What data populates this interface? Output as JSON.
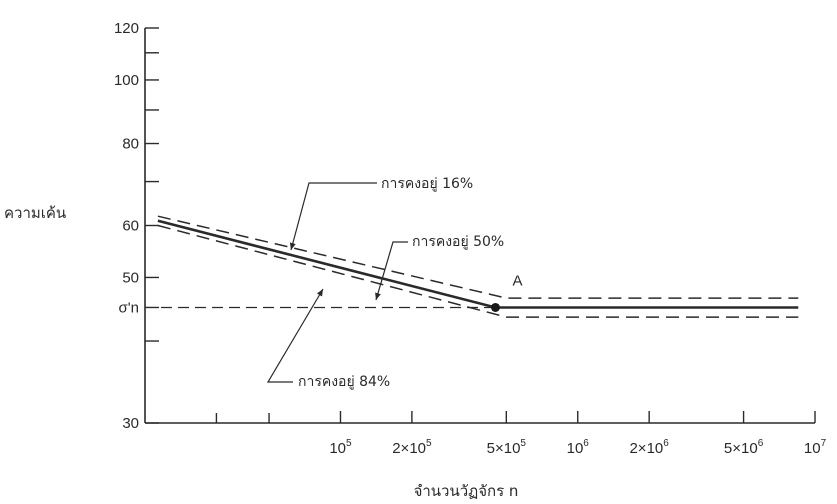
{
  "chart_data": {
    "type": "line",
    "title": "",
    "xlabel": "จำนวนวัฏจักร n",
    "ylabel": "ความเค้น",
    "x_scale": "log",
    "y_scale": "log",
    "xlim": [
      15000,
      10000000
    ],
    "ylim": [
      30,
      120
    ],
    "grid": false,
    "legend": "none",
    "y_ticks": [
      {
        "value": 120,
        "label": "120"
      },
      {
        "value": 100,
        "label": "100"
      },
      {
        "value": 80,
        "label": "80"
      },
      {
        "value": 60,
        "label": "60"
      },
      {
        "value": 50,
        "label": "50"
      },
      {
        "value": 45,
        "label": "σ'n"
      },
      {
        "value": 30,
        "label": "30"
      }
    ],
    "y_minor_ticks": [
      110,
      90,
      70,
      40
    ],
    "x_ticks": [
      {
        "value": 100000,
        "base": "10",
        "sup": "5"
      },
      {
        "value": 200000,
        "base": "2×10",
        "sup": "5"
      },
      {
        "value": 500000,
        "base": "5×10",
        "sup": "5"
      },
      {
        "value": 1000000,
        "base": "10",
        "sup": "6"
      },
      {
        "value": 2000000,
        "base": "2×10",
        "sup": "6"
      },
      {
        "value": 5000000,
        "base": "5×10",
        "sup": "6"
      },
      {
        "value": 10000000,
        "base": "10",
        "sup": "7"
      }
    ],
    "x_minor_ticks": [
      30000,
      50000
    ],
    "series": [
      {
        "name": "การคงอยู่ 16%",
        "style": "dashed",
        "x": [
          17000,
          500000,
          8500000
        ],
        "y": [
          62,
          46.5,
          46.5
        ]
      },
      {
        "name": "การคงอยู่ 50%",
        "style": "solid",
        "x": [
          17000,
          450000,
          8500000
        ],
        "y": [
          61,
          45,
          45
        ]
      },
      {
        "name": "การคงอยู่ 84%",
        "style": "dashed",
        "x": [
          17000,
          500000,
          8500000
        ],
        "y": [
          60,
          43.5,
          43.5
        ]
      }
    ],
    "reference_line": {
      "y": 45,
      "style": "dashed"
    },
    "point": {
      "x": 450000,
      "y": 45,
      "label": "A"
    }
  }
}
